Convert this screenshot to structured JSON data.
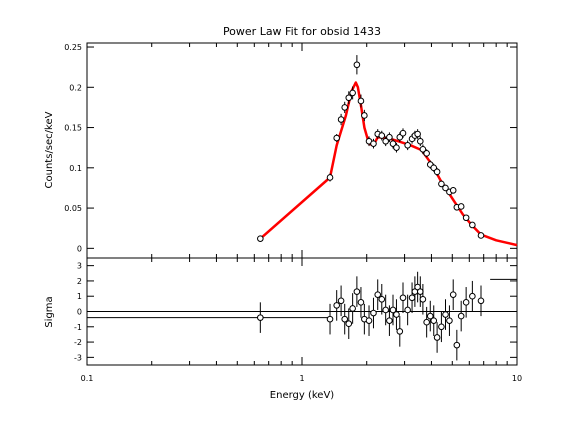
{
  "chart_data": {
    "type": "scatter",
    "title": "Power Law Fit for obsid 1433",
    "xlabel": "Energy (keV)",
    "x_scale": "log",
    "xlim": [
      0.1,
      10
    ],
    "x_ticks": [
      "0.1",
      "1",
      "10"
    ],
    "panels": [
      {
        "name": "spectrum",
        "ylabel": "Counts/sec/keV",
        "ylim": [
          -0.012,
          0.255
        ],
        "y_ticks": [
          "0",
          "0.05",
          "0.1",
          "0.15",
          "0.2",
          "0.25"
        ],
        "data": [
          {
            "x": 0.64,
            "y": 0.012,
            "err": 0.003
          },
          {
            "x": 1.35,
            "y": 0.088,
            "err": 0.005
          },
          {
            "x": 1.45,
            "y": 0.137,
            "err": 0.005
          },
          {
            "x": 1.52,
            "y": 0.16,
            "err": 0.007
          },
          {
            "x": 1.58,
            "y": 0.175,
            "err": 0.007
          },
          {
            "x": 1.65,
            "y": 0.187,
            "err": 0.008
          },
          {
            "x": 1.72,
            "y": 0.193,
            "err": 0.008
          },
          {
            "x": 1.8,
            "y": 0.228,
            "err": 0.012
          },
          {
            "x": 1.88,
            "y": 0.183,
            "err": 0.008
          },
          {
            "x": 1.95,
            "y": 0.165,
            "err": 0.007
          },
          {
            "x": 2.05,
            "y": 0.133,
            "err": 0.006
          },
          {
            "x": 2.15,
            "y": 0.13,
            "err": 0.006
          },
          {
            "x": 2.25,
            "y": 0.142,
            "err": 0.006
          },
          {
            "x": 2.35,
            "y": 0.14,
            "err": 0.006
          },
          {
            "x": 2.45,
            "y": 0.133,
            "err": 0.006
          },
          {
            "x": 2.55,
            "y": 0.138,
            "err": 0.006
          },
          {
            "x": 2.65,
            "y": 0.13,
            "err": 0.006
          },
          {
            "x": 2.75,
            "y": 0.125,
            "err": 0.006
          },
          {
            "x": 2.85,
            "y": 0.138,
            "err": 0.006
          },
          {
            "x": 2.95,
            "y": 0.143,
            "err": 0.006
          },
          {
            "x": 3.1,
            "y": 0.128,
            "err": 0.006
          },
          {
            "x": 3.25,
            "y": 0.136,
            "err": 0.006
          },
          {
            "x": 3.35,
            "y": 0.14,
            "err": 0.006
          },
          {
            "x": 3.45,
            "y": 0.142,
            "err": 0.006
          },
          {
            "x": 3.55,
            "y": 0.133,
            "err": 0.006
          },
          {
            "x": 3.65,
            "y": 0.123,
            "err": 0.006
          },
          {
            "x": 3.8,
            "y": 0.118,
            "err": 0.005
          },
          {
            "x": 3.95,
            "y": 0.104,
            "err": 0.005
          },
          {
            "x": 4.1,
            "y": 0.1,
            "err": 0.005
          },
          {
            "x": 4.25,
            "y": 0.095,
            "err": 0.005
          },
          {
            "x": 4.45,
            "y": 0.08,
            "err": 0.004
          },
          {
            "x": 4.65,
            "y": 0.075,
            "err": 0.004
          },
          {
            "x": 4.85,
            "y": 0.07,
            "err": 0.004
          },
          {
            "x": 5.05,
            "y": 0.072,
            "err": 0.004
          },
          {
            "x": 5.25,
            "y": 0.051,
            "err": 0.004
          },
          {
            "x": 5.5,
            "y": 0.052,
            "err": 0.003
          },
          {
            "x": 5.8,
            "y": 0.038,
            "err": 0.003
          },
          {
            "x": 6.2,
            "y": 0.029,
            "err": 0.003
          },
          {
            "x": 6.8,
            "y": 0.016,
            "err": 0.002
          }
        ],
        "model": {
          "color": "#ff0000",
          "x": [
            0.64,
            1.35,
            1.45,
            1.6,
            1.7,
            1.78,
            1.82,
            1.88,
            1.95,
            2.05,
            2.15,
            2.25,
            2.5,
            2.8,
            3.2,
            3.6,
            4.0,
            4.4,
            5.0,
            5.6,
            6.2,
            6.8,
            8.0,
            10.0
          ],
          "y": [
            0.012,
            0.088,
            0.128,
            0.165,
            0.195,
            0.206,
            0.2,
            0.178,
            0.15,
            0.13,
            0.128,
            0.138,
            0.137,
            0.133,
            0.128,
            0.122,
            0.105,
            0.085,
            0.062,
            0.042,
            0.028,
            0.017,
            0.01,
            0.004
          ]
        }
      },
      {
        "name": "residuals",
        "ylabel": "Sigma",
        "ylim": [
          -3.5,
          3.5
        ],
        "y_ticks": [
          "-3",
          "-2",
          "-1",
          "0",
          "1",
          "2",
          "3"
        ],
        "data": [
          {
            "x": 0.64,
            "y": -0.4,
            "err": 1.0
          },
          {
            "x": 1.35,
            "y": -0.5,
            "err": 1.0
          },
          {
            "x": 1.45,
            "y": 0.4,
            "err": 1.0
          },
          {
            "x": 1.52,
            "y": 0.7,
            "err": 1.0
          },
          {
            "x": 1.58,
            "y": -0.5,
            "err": 1.0
          },
          {
            "x": 1.65,
            "y": -0.8,
            "err": 1.0
          },
          {
            "x": 1.72,
            "y": 0.2,
            "err": 1.0
          },
          {
            "x": 1.8,
            "y": 1.3,
            "err": 1.0
          },
          {
            "x": 1.88,
            "y": 0.6,
            "err": 1.0
          },
          {
            "x": 1.95,
            "y": -0.5,
            "err": 1.0
          },
          {
            "x": 2.05,
            "y": -0.6,
            "err": 1.0
          },
          {
            "x": 2.15,
            "y": -0.1,
            "err": 1.0
          },
          {
            "x": 2.25,
            "y": 1.1,
            "err": 1.0
          },
          {
            "x": 2.35,
            "y": 0.8,
            "err": 1.0
          },
          {
            "x": 2.45,
            "y": 0.1,
            "err": 1.0
          },
          {
            "x": 2.55,
            "y": -0.6,
            "err": 1.0
          },
          {
            "x": 2.65,
            "y": 0.1,
            "err": 1.0
          },
          {
            "x": 2.75,
            "y": -0.2,
            "err": 1.0
          },
          {
            "x": 2.85,
            "y": -1.3,
            "err": 1.0
          },
          {
            "x": 2.95,
            "y": 0.9,
            "err": 1.0
          },
          {
            "x": 3.1,
            "y": 0.1,
            "err": 1.0
          },
          {
            "x": 3.25,
            "y": 0.9,
            "err": 1.0
          },
          {
            "x": 3.35,
            "y": 1.3,
            "err": 1.0
          },
          {
            "x": 3.45,
            "y": 1.6,
            "err": 1.0
          },
          {
            "x": 3.55,
            "y": 1.3,
            "err": 1.0
          },
          {
            "x": 3.65,
            "y": 0.8,
            "err": 1.0
          },
          {
            "x": 3.8,
            "y": -0.7,
            "err": 1.0
          },
          {
            "x": 3.95,
            "y": -0.3,
            "err": 1.0
          },
          {
            "x": 4.1,
            "y": -0.6,
            "err": 1.0
          },
          {
            "x": 4.25,
            "y": -1.7,
            "err": 1.0
          },
          {
            "x": 4.45,
            "y": -1.0,
            "err": 1.0
          },
          {
            "x": 4.65,
            "y": -0.2,
            "err": 1.0
          },
          {
            "x": 4.85,
            "y": -0.6,
            "err": 1.0
          },
          {
            "x": 5.05,
            "y": 1.1,
            "err": 1.0
          },
          {
            "x": 5.25,
            "y": -2.2,
            "err": 1.0
          },
          {
            "x": 5.5,
            "y": -0.3,
            "err": 1.0
          },
          {
            "x": 5.8,
            "y": 0.6,
            "err": 1.0
          },
          {
            "x": 6.2,
            "y": 1.0,
            "err": 1.0
          },
          {
            "x": 6.8,
            "y": 0.7,
            "err": 1.0
          }
        ],
        "reference_lines": [
          {
            "y": 0.0,
            "x_from": 0.1,
            "x_to": 10
          },
          {
            "y": -0.4,
            "x_from": 0.1,
            "x_to": 1.35
          },
          {
            "y": 2.1,
            "x_from": 7.5,
            "x_to": 10
          }
        ]
      }
    ]
  }
}
